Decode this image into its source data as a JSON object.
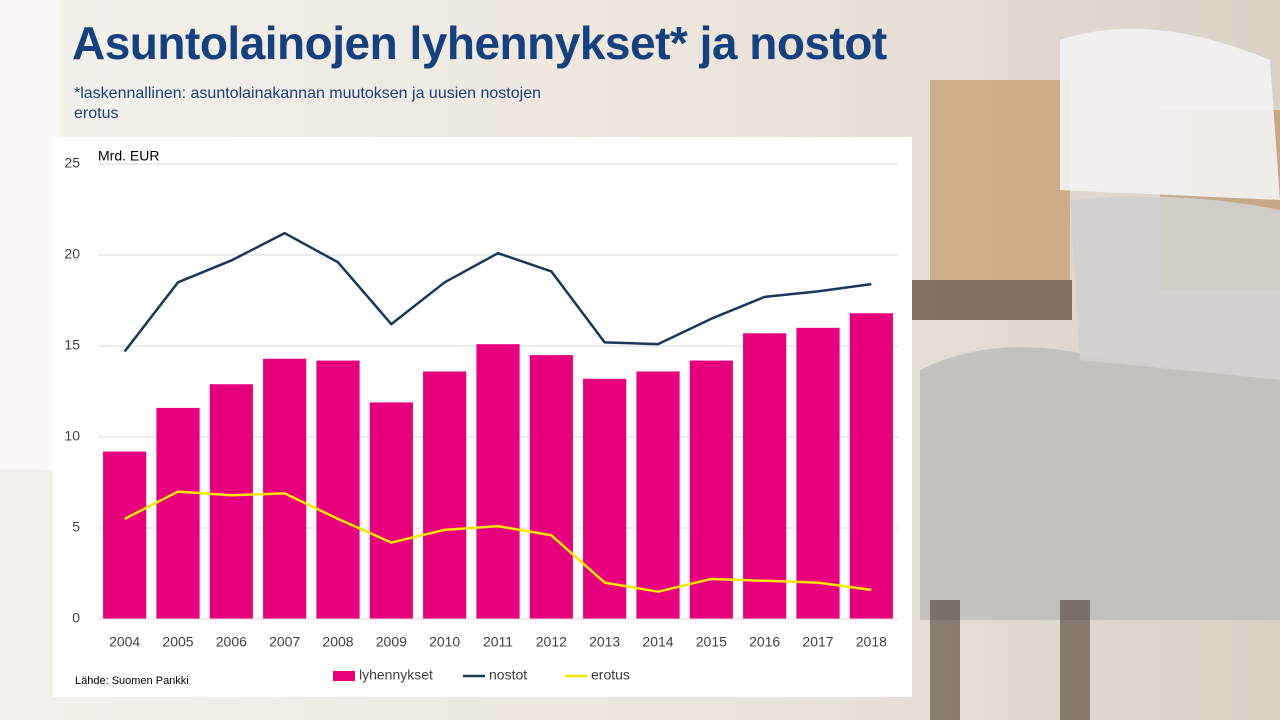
{
  "chart_data": {
    "type": "bar",
    "title": "Asuntolainojen lyhennykset* ja nostot",
    "subtitle": "*laskennallinen: asuntolainakannan muutoksen ja uusien nostojen erotus",
    "y_label": "Mrd. EUR",
    "source": "Lähde: Suomen Pankki",
    "categories": [
      "2004",
      "2005",
      "2006",
      "2007",
      "2008",
      "2009",
      "2010",
      "2011",
      "2012",
      "2013",
      "2014",
      "2015",
      "2016",
      "2017",
      "2018"
    ],
    "series": [
      {
        "name": "lyhennykset",
        "type": "bar",
        "color": "#e6007e",
        "values": [
          9.2,
          11.6,
          12.9,
          14.3,
          14.2,
          11.9,
          13.6,
          15.1,
          14.5,
          13.2,
          13.6,
          14.2,
          15.7,
          16.0,
          16.8
        ]
      },
      {
        "name": "nostot",
        "type": "line",
        "color": "#17375e",
        "values": [
          14.7,
          18.5,
          19.7,
          21.2,
          19.6,
          16.2,
          18.5,
          20.1,
          19.1,
          15.2,
          15.1,
          16.5,
          17.7,
          18.0,
          18.4
        ]
      },
      {
        "name": "erotus",
        "type": "line",
        "color": "#ffe600",
        "values": [
          5.5,
          7.0,
          6.8,
          6.9,
          5.5,
          4.2,
          4.9,
          5.1,
          4.6,
          2.0,
          1.5,
          2.2,
          2.1,
          2.0,
          1.6
        ]
      }
    ],
    "ylim": [
      0,
      25
    ],
    "yticks": [
      0,
      5,
      10,
      15,
      20,
      25
    ],
    "grid": true,
    "legend": "bottom"
  }
}
